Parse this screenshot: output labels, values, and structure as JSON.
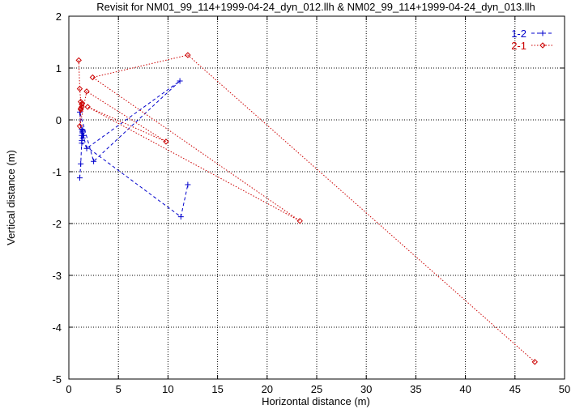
{
  "chart_data": {
    "type": "line",
    "title": "Revisit for NM01_99_114+1999-04-24_dyn_012.llh & NM02_99_114+1999-04-24_dyn_013.llh",
    "xlabel": "Horizontal distance (m)",
    "ylabel": "Vertical distance (m)",
    "xlim": [
      0,
      50
    ],
    "ylim": [
      -5,
      2
    ],
    "xticks": [
      0,
      5,
      10,
      15,
      20,
      25,
      30,
      35,
      40,
      45,
      50
    ],
    "yticks": [
      -5,
      -4,
      -3,
      -2,
      -1,
      0,
      1,
      2
    ],
    "xtick_labels": [
      "0",
      "5",
      "10",
      "15",
      "20",
      "25",
      "30",
      "35",
      "40",
      "45",
      "50"
    ],
    "ytick_labels": [
      "-5",
      "-4",
      "-3",
      "-2",
      "-1",
      "0",
      "1",
      "2"
    ],
    "grid": true,
    "legend_position": "top-right",
    "series": [
      {
        "name": "1-2",
        "color": "#0000cc",
        "marker": "plus",
        "line": "dashed",
        "points": [
          [
            1.1,
            -1.12
          ],
          [
            1.2,
            -0.85
          ],
          [
            1.3,
            -0.4
          ],
          [
            1.3,
            -0.3
          ],
          [
            1.35,
            -0.25
          ],
          [
            1.4,
            -0.2
          ],
          [
            1.3,
            -0.18
          ],
          [
            1.4,
            -0.35
          ],
          [
            1.5,
            -0.3
          ],
          [
            1.35,
            -0.22
          ],
          [
            1.8,
            -0.55
          ],
          [
            11.2,
            0.75
          ],
          [
            2.5,
            -0.8
          ],
          [
            1.1,
            0.15
          ],
          [
            1.3,
            -0.45
          ],
          [
            11.3,
            -1.87
          ],
          [
            12.0,
            -1.25
          ]
        ]
      },
      {
        "name": "2-1",
        "color": "#cc0000",
        "marker": "diamond",
        "line": "dotted",
        "points": [
          [
            1.0,
            1.15
          ],
          [
            1.1,
            0.6
          ],
          [
            1.2,
            0.35
          ],
          [
            1.3,
            0.3
          ],
          [
            1.3,
            0.25
          ],
          [
            1.2,
            0.2
          ],
          [
            1.35,
            0.32
          ],
          [
            1.2,
            0.22
          ],
          [
            1.1,
            -0.12
          ],
          [
            1.8,
            0.55
          ],
          [
            9.8,
            -0.42
          ],
          [
            1.9,
            0.25
          ],
          [
            23.3,
            -1.95
          ],
          [
            2.4,
            0.82
          ],
          [
            12.0,
            1.25
          ],
          [
            47.0,
            -4.67
          ]
        ]
      }
    ]
  }
}
